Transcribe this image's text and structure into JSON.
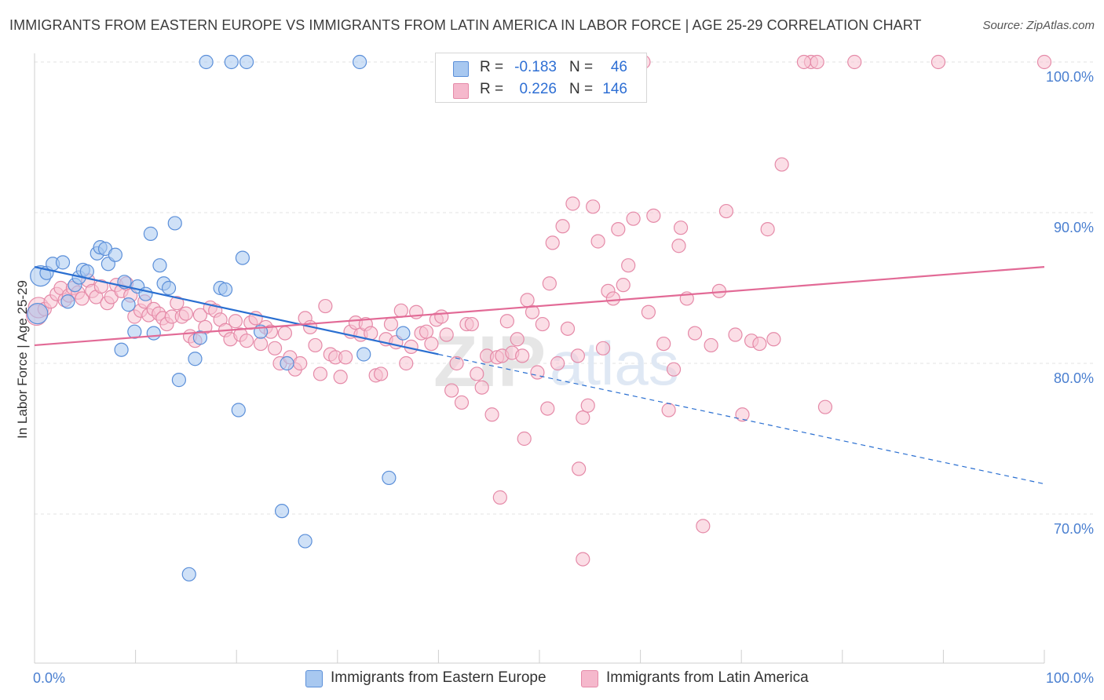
{
  "title": "IMMIGRANTS FROM EASTERN EUROPE VS IMMIGRANTS FROM LATIN AMERICA IN LABOR FORCE | AGE 25-29 CORRELATION CHART",
  "source": "Source: ZipAtlas.com",
  "watermark": {
    "zip": "ZIP",
    "atlas": "atlas"
  },
  "legend": {
    "rows": [
      {
        "r_label": "R =",
        "r_value": "-0.183",
        "n_label": "N =",
        "n_value": "46",
        "color": "#a8c8f0"
      },
      {
        "r_label": "R =",
        "r_value": "0.226",
        "n_label": "N =",
        "n_value": "146",
        "color": "#f5b8cc"
      }
    ]
  },
  "bottom_legend": [
    {
      "label": "Immigrants from Eastern Europe",
      "color": "#a8c8f0"
    },
    {
      "label": "Immigrants from Latin America",
      "color": "#f5b8cc"
    }
  ],
  "chart_data": {
    "type": "scatter",
    "ylabel": "In Labor Force | Age 25-29",
    "xlim": [
      0,
      100
    ],
    "ylim": [
      62,
      101.5
    ],
    "x_tick_labels": [
      "0.0%",
      "100.0%"
    ],
    "y_ticks": [
      {
        "value": 100,
        "label": "100.0%"
      },
      {
        "value": 90,
        "label": "90.0%"
      },
      {
        "value": 80,
        "label": "80.0%"
      },
      {
        "value": 70,
        "label": "70.0%"
      }
    ],
    "grid": true,
    "colors": {
      "blue_fill": "#a8c8f0",
      "blue_stroke": "#5b8fd9",
      "blue_line": "#2a6fd1",
      "pink_fill": "#f7c2d2",
      "pink_stroke": "#e58aa8",
      "pink_line": "#e26a96"
    },
    "series": [
      {
        "name": "Immigrants from Eastern Europe",
        "points": [
          [
            0.3,
            83.3
          ],
          [
            0.6,
            85.8
          ],
          [
            1.2,
            86.0
          ],
          [
            1.8,
            86.6
          ],
          [
            2.8,
            86.7
          ],
          [
            3.3,
            84.1
          ],
          [
            4.0,
            85.2
          ],
          [
            4.4,
            85.7
          ],
          [
            4.8,
            86.2
          ],
          [
            5.2,
            86.1
          ],
          [
            6.2,
            87.3
          ],
          [
            6.5,
            87.7
          ],
          [
            7.0,
            87.6
          ],
          [
            7.3,
            86.6
          ],
          [
            8.0,
            87.2
          ],
          [
            8.6,
            80.9
          ],
          [
            8.9,
            85.4
          ],
          [
            9.3,
            83.9
          ],
          [
            9.9,
            82.1
          ],
          [
            10.2,
            85.1
          ],
          [
            11.0,
            84.6
          ],
          [
            11.5,
            88.6
          ],
          [
            11.8,
            82.0
          ],
          [
            12.4,
            86.5
          ],
          [
            12.8,
            85.3
          ],
          [
            13.3,
            85.0
          ],
          [
            13.9,
            89.3
          ],
          [
            14.3,
            78.9
          ],
          [
            15.3,
            66.0
          ],
          [
            15.9,
            80.3
          ],
          [
            16.4,
            81.7
          ],
          [
            17.0,
            100.0
          ],
          [
            18.4,
            85.0
          ],
          [
            18.9,
            84.9
          ],
          [
            19.5,
            100.0
          ],
          [
            20.2,
            76.9
          ],
          [
            20.6,
            87.0
          ],
          [
            21.0,
            100.0
          ],
          [
            22.4,
            82.1
          ],
          [
            24.5,
            70.2
          ],
          [
            25.0,
            80.0
          ],
          [
            26.8,
            68.2
          ],
          [
            32.2,
            100.0
          ],
          [
            32.6,
            80.6
          ],
          [
            35.1,
            72.4
          ],
          [
            36.5,
            82.0
          ]
        ]
      },
      {
        "name": "Immigrants from Latin America",
        "points": [
          [
            0.2,
            83.2
          ],
          [
            0.4,
            83.7
          ],
          [
            1.0,
            83.6
          ],
          [
            1.6,
            84.1
          ],
          [
            2.2,
            84.6
          ],
          [
            2.6,
            85.0
          ],
          [
            3.0,
            84.2
          ],
          [
            3.4,
            84.5
          ],
          [
            3.8,
            85.0
          ],
          [
            4.3,
            84.7
          ],
          [
            4.7,
            84.3
          ],
          [
            5.3,
            85.5
          ],
          [
            5.7,
            84.8
          ],
          [
            6.1,
            84.4
          ],
          [
            6.6,
            85.1
          ],
          [
            7.2,
            84.0
          ],
          [
            7.6,
            84.4
          ],
          [
            8.1,
            85.2
          ],
          [
            8.6,
            84.8
          ],
          [
            9.1,
            85.3
          ],
          [
            9.5,
            84.5
          ],
          [
            9.9,
            83.1
          ],
          [
            10.5,
            83.5
          ],
          [
            10.9,
            84.1
          ],
          [
            11.3,
            83.2
          ],
          [
            11.8,
            83.6
          ],
          [
            12.3,
            83.3
          ],
          [
            12.7,
            83.0
          ],
          [
            13.1,
            82.6
          ],
          [
            13.6,
            83.1
          ],
          [
            14.1,
            84.0
          ],
          [
            14.6,
            83.1
          ],
          [
            15.0,
            83.3
          ],
          [
            15.4,
            81.8
          ],
          [
            15.9,
            81.5
          ],
          [
            16.4,
            83.2
          ],
          [
            16.9,
            82.4
          ],
          [
            17.4,
            83.7
          ],
          [
            17.9,
            83.5
          ],
          [
            18.4,
            82.9
          ],
          [
            18.9,
            82.2
          ],
          [
            19.4,
            81.6
          ],
          [
            19.9,
            82.8
          ],
          [
            20.4,
            81.9
          ],
          [
            21.0,
            81.5
          ],
          [
            21.4,
            82.7
          ],
          [
            21.9,
            83.0
          ],
          [
            22.4,
            81.3
          ],
          [
            22.9,
            82.4
          ],
          [
            23.4,
            82.1
          ],
          [
            23.8,
            81.0
          ],
          [
            24.3,
            80.0
          ],
          [
            24.8,
            82.0
          ],
          [
            25.3,
            80.4
          ],
          [
            25.8,
            79.6
          ],
          [
            26.3,
            80.0
          ],
          [
            26.8,
            83.0
          ],
          [
            27.3,
            82.4
          ],
          [
            27.8,
            81.2
          ],
          [
            28.3,
            79.3
          ],
          [
            28.8,
            83.8
          ],
          [
            29.3,
            80.6
          ],
          [
            29.8,
            80.4
          ],
          [
            30.3,
            79.1
          ],
          [
            30.8,
            80.4
          ],
          [
            31.3,
            82.1
          ],
          [
            31.8,
            82.7
          ],
          [
            32.3,
            81.9
          ],
          [
            32.8,
            82.6
          ],
          [
            33.3,
            82.0
          ],
          [
            33.8,
            79.2
          ],
          [
            34.3,
            79.3
          ],
          [
            34.8,
            81.6
          ],
          [
            35.3,
            82.6
          ],
          [
            35.8,
            81.4
          ],
          [
            36.3,
            83.5
          ],
          [
            36.8,
            80.0
          ],
          [
            37.3,
            81.1
          ],
          [
            37.8,
            83.4
          ],
          [
            38.3,
            82.0
          ],
          [
            38.8,
            82.1
          ],
          [
            39.3,
            81.3
          ],
          [
            39.8,
            82.9
          ],
          [
            40.3,
            83.1
          ],
          [
            40.8,
            81.9
          ],
          [
            41.3,
            78.2
          ],
          [
            41.8,
            80.0
          ],
          [
            42.3,
            77.4
          ],
          [
            42.8,
            82.6
          ],
          [
            43.3,
            82.6
          ],
          [
            43.8,
            79.3
          ],
          [
            44.3,
            78.4
          ],
          [
            44.8,
            80.5
          ],
          [
            45.3,
            76.6
          ],
          [
            45.8,
            80.4
          ],
          [
            46.3,
            80.5
          ],
          [
            46.8,
            82.8
          ],
          [
            47.3,
            80.7
          ],
          [
            47.8,
            81.6
          ],
          [
            48.3,
            80.5
          ],
          [
            48.8,
            84.2
          ],
          [
            49.3,
            83.4
          ],
          [
            49.8,
            79.4
          ],
          [
            50.3,
            82.6
          ],
          [
            50.8,
            77.0
          ],
          [
            51.3,
            88.0
          ],
          [
            51.8,
            80.0
          ],
          [
            52.3,
            89.1
          ],
          [
            52.8,
            82.3
          ],
          [
            53.3,
            90.6
          ],
          [
            53.8,
            80.5
          ],
          [
            54.3,
            76.4
          ],
          [
            54.8,
            77.2
          ],
          [
            55.3,
            90.4
          ],
          [
            55.8,
            88.1
          ],
          [
            56.3,
            81.0
          ],
          [
            56.8,
            84.8
          ],
          [
            57.3,
            84.3
          ],
          [
            57.8,
            88.9
          ],
          [
            58.3,
            85.2
          ],
          [
            58.8,
            86.5
          ],
          [
            59.3,
            89.6
          ],
          [
            59.8,
            98.3
          ],
          [
            60.3,
            100.0
          ],
          [
            60.8,
            83.4
          ],
          [
            61.3,
            89.8
          ],
          [
            62.3,
            81.3
          ],
          [
            62.8,
            76.9
          ],
          [
            63.3,
            79.6
          ],
          [
            63.8,
            87.8
          ],
          [
            64.6,
            84.3
          ],
          [
            65.4,
            82.0
          ],
          [
            66.2,
            69.2
          ],
          [
            67.0,
            81.2
          ],
          [
            67.8,
            84.8
          ],
          [
            68.5,
            90.1
          ],
          [
            69.4,
            81.9
          ],
          [
            70.1,
            76.6
          ],
          [
            71.0,
            81.5
          ],
          [
            71.8,
            81.3
          ],
          [
            72.6,
            88.9
          ],
          [
            73.2,
            81.6
          ],
          [
            74.0,
            93.2
          ],
          [
            76.9,
            100.0
          ],
          [
            77.5,
            100.0
          ],
          [
            81.2,
            100.0
          ],
          [
            89.5,
            100.0
          ],
          [
            100.0,
            100.0
          ],
          [
            46.1,
            71.1
          ],
          [
            48.5,
            75.0
          ],
          [
            54.3,
            67.0
          ],
          [
            76.2,
            100.0
          ],
          [
            78.3,
            77.1
          ],
          [
            53.9,
            73.0
          ],
          [
            51.0,
            85.3
          ],
          [
            64.0,
            89.0
          ]
        ]
      }
    ],
    "trendlines": [
      {
        "series": "Immigrants from Eastern Europe",
        "from": [
          0,
          86.4
        ],
        "to": [
          40,
          80.6
        ],
        "dashed_to": [
          100,
          72.0
        ]
      },
      {
        "series": "Immigrants from Latin America",
        "from": [
          0,
          81.2
        ],
        "to": [
          100,
          86.4
        ]
      }
    ]
  }
}
